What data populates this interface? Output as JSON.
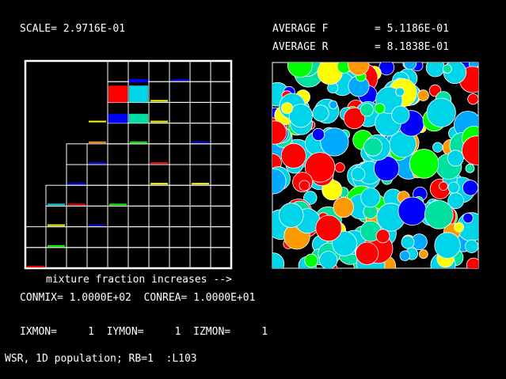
{
  "header": {
    "scale_text": "SCALE= 2.9716E-01",
    "average_f_label": "AVERAGE F",
    "average_f_value": "= 5.1186E-01",
    "average_r_label": "AVERAGE R",
    "average_r_value": "= 8.1838E-01"
  },
  "footer": {
    "mixture_text": "mixture fraction increases -->",
    "con_text": "CONMIX= 1.0000E+02  CONREA= 1.0000E+01",
    "monitor_text": "IXMON=     1  IYMON=     1  IZMON=     1",
    "status_text": "WSR, 1D population; RB=1  :L103"
  },
  "colors": {
    "background": "#000000",
    "grid_line": "#ffffff",
    "red": "#ff0000",
    "cyan": "#00d4e8",
    "blue": "#0000ff",
    "teal": "#00e0a0",
    "yellow": "#ffff00",
    "green": "#00ff00",
    "orange": "#ff9900",
    "lightblue": "#00aaff"
  }
}
